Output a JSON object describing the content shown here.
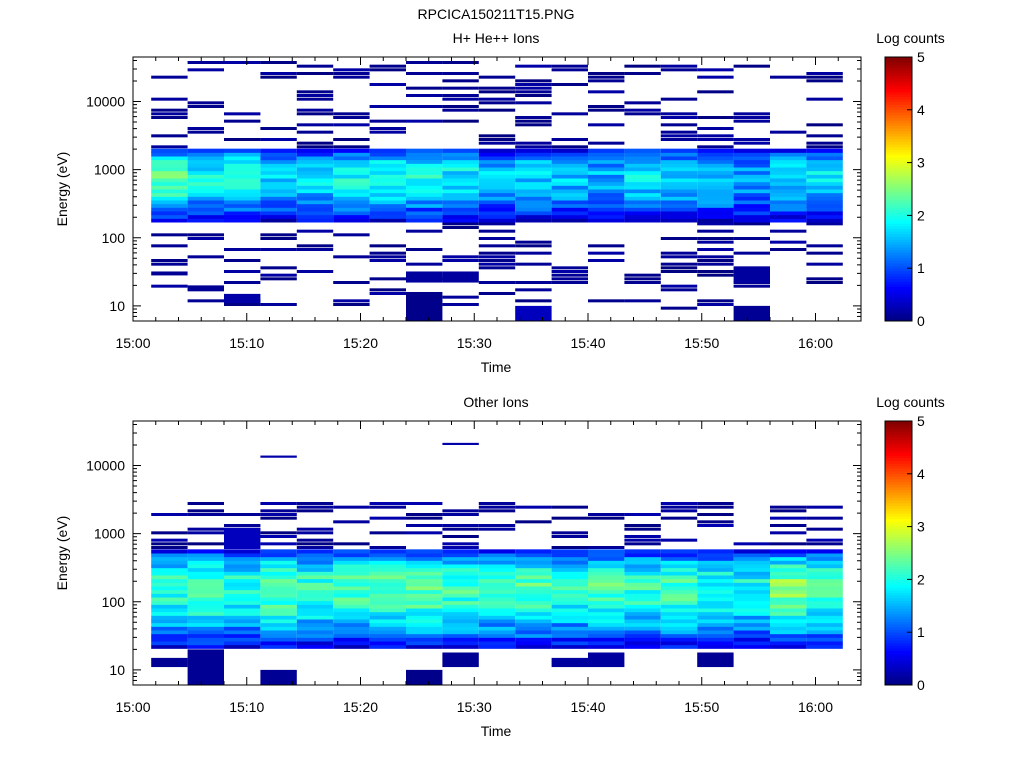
{
  "figure_title": "RPCICA150211T15.PNG",
  "chart_data": [
    {
      "type": "heatmap",
      "title": "H+ He++ Ions",
      "xlabel": "Time",
      "ylabel": "Energy (eV)",
      "x_ticks": [
        "15:00",
        "15:10",
        "15:20",
        "15:30",
        "15:40",
        "15:50",
        "16:00"
      ],
      "x_range_minutes": [
        0,
        64
      ],
      "y_scale": "log",
      "y_ticks": [
        "10",
        "100",
        "1000",
        "10000"
      ],
      "ylim": [
        6,
        45000
      ],
      "colorbar": {
        "label": "Log counts",
        "ticks": [
          "0",
          "1",
          "2",
          "3",
          "4",
          "5"
        ],
        "range": [
          0,
          5
        ]
      },
      "columns_minutes": [
        [
          1.6,
          4.8
        ],
        [
          4.8,
          8.0
        ],
        [
          8.0,
          11.2
        ],
        [
          11.2,
          14.4
        ],
        [
          14.4,
          17.6
        ],
        [
          17.6,
          20.8
        ],
        [
          20.8,
          24.0
        ],
        [
          24.0,
          27.2
        ],
        [
          27.2,
          30.4
        ],
        [
          30.4,
          33.6
        ],
        [
          33.6,
          36.8
        ],
        [
          36.8,
          40.0
        ],
        [
          40.0,
          43.2
        ],
        [
          43.2,
          46.4
        ],
        [
          46.4,
          49.6
        ],
        [
          49.6,
          52.8
        ],
        [
          52.8,
          56.0
        ],
        [
          56.0,
          59.2
        ],
        [
          59.2,
          62.4
        ]
      ],
      "band": {
        "emin": 180,
        "emax": 2100,
        "peak_energy": 900,
        "peak_levels": [
          2.3,
          1.9,
          2.1,
          1.7,
          1.8,
          1.9,
          2.0,
          1.9,
          1.8,
          1.6,
          1.7,
          1.6,
          1.5,
          1.8,
          1.7,
          1.7,
          1.4,
          1.8,
          1.7
        ]
      },
      "sparse": {
        "emin": 9,
        "emax": 42000,
        "density": 0.28,
        "level": 0.2
      },
      "blobs": [
        {
          "col": 0,
          "emin": 28,
          "emax": 32,
          "level": 0.1
        },
        {
          "col": 1,
          "emin": 17,
          "emax": 20,
          "level": 0.1
        },
        {
          "col": 2,
          "emin": 11,
          "emax": 15,
          "level": 0.2
        },
        {
          "col": 7,
          "emin": 22,
          "emax": 32,
          "level": 0.15
        },
        {
          "col": 7,
          "emin": 6,
          "emax": 16,
          "level": 0.05
        },
        {
          "col": 8,
          "emin": 22,
          "emax": 32,
          "level": 0.15
        },
        {
          "col": 10,
          "emin": 6,
          "emax": 10,
          "level": 0.3
        },
        {
          "col": 16,
          "emin": 22,
          "emax": 36,
          "level": 0.15
        },
        {
          "col": 16,
          "emin": 6,
          "emax": 10,
          "level": 0.1
        }
      ]
    },
    {
      "type": "heatmap",
      "title": "Other Ions",
      "xlabel": "Time",
      "ylabel": "Energy (eV)",
      "x_ticks": [
        "15:00",
        "15:10",
        "15:20",
        "15:30",
        "15:40",
        "15:50",
        "16:00"
      ],
      "x_range_minutes": [
        0,
        64
      ],
      "y_scale": "log",
      "y_ticks": [
        "10",
        "100",
        "1000",
        "10000"
      ],
      "ylim": [
        6,
        45000
      ],
      "colorbar": {
        "label": "Log counts",
        "ticks": [
          "0",
          "1",
          "2",
          "3",
          "4",
          "5"
        ],
        "range": [
          0,
          5
        ]
      },
      "columns_minutes": [
        [
          1.6,
          4.8
        ],
        [
          4.8,
          8.0
        ],
        [
          8.0,
          11.2
        ],
        [
          11.2,
          14.4
        ],
        [
          14.4,
          17.6
        ],
        [
          17.6,
          20.8
        ],
        [
          20.8,
          24.0
        ],
        [
          24.0,
          27.2
        ],
        [
          27.2,
          30.4
        ],
        [
          30.4,
          33.6
        ],
        [
          33.6,
          36.8
        ],
        [
          36.8,
          40.0
        ],
        [
          40.0,
          43.2
        ],
        [
          43.2,
          46.4
        ],
        [
          46.4,
          49.6
        ],
        [
          49.6,
          52.8
        ],
        [
          52.8,
          56.0
        ],
        [
          56.0,
          59.2
        ],
        [
          59.2,
          62.4
        ]
      ],
      "band": {
        "emin": 22,
        "emax": 600,
        "peak_energy": 180,
        "peak_levels": [
          2.1,
          2.2,
          2.0,
          2.3,
          2.1,
          2.2,
          2.3,
          2.4,
          2.2,
          2.1,
          2.3,
          2.0,
          2.2,
          2.1,
          2.2,
          2.0,
          1.9,
          2.5,
          2.2
        ]
      },
      "sparse": {
        "emin": 300,
        "emax": 3000,
        "density": 0.35,
        "level": 0.25
      },
      "blobs": [
        {
          "col": 0,
          "emin": 11,
          "emax": 15,
          "level": 0.1
        },
        {
          "col": 1,
          "emin": 6,
          "emax": 20,
          "level": 0.1
        },
        {
          "col": 2,
          "emin": 600,
          "emax": 1200,
          "level": 0.3
        },
        {
          "col": 3,
          "emin": 6,
          "emax": 10,
          "level": 0.1
        },
        {
          "col": 3,
          "emin": 13000,
          "emax": 14000,
          "level": 0.2
        },
        {
          "col": 7,
          "emin": 6,
          "emax": 10,
          "level": 0.05
        },
        {
          "col": 8,
          "emin": 11,
          "emax": 18,
          "level": 0.1
        },
        {
          "col": 8,
          "emin": 20000,
          "emax": 21500,
          "level": 0.2
        },
        {
          "col": 11,
          "emin": 11,
          "emax": 15,
          "level": 0.15
        },
        {
          "col": 12,
          "emin": 11,
          "emax": 18,
          "level": 0.15
        },
        {
          "col": 15,
          "emin": 11,
          "emax": 18,
          "level": 0.1
        }
      ]
    }
  ]
}
